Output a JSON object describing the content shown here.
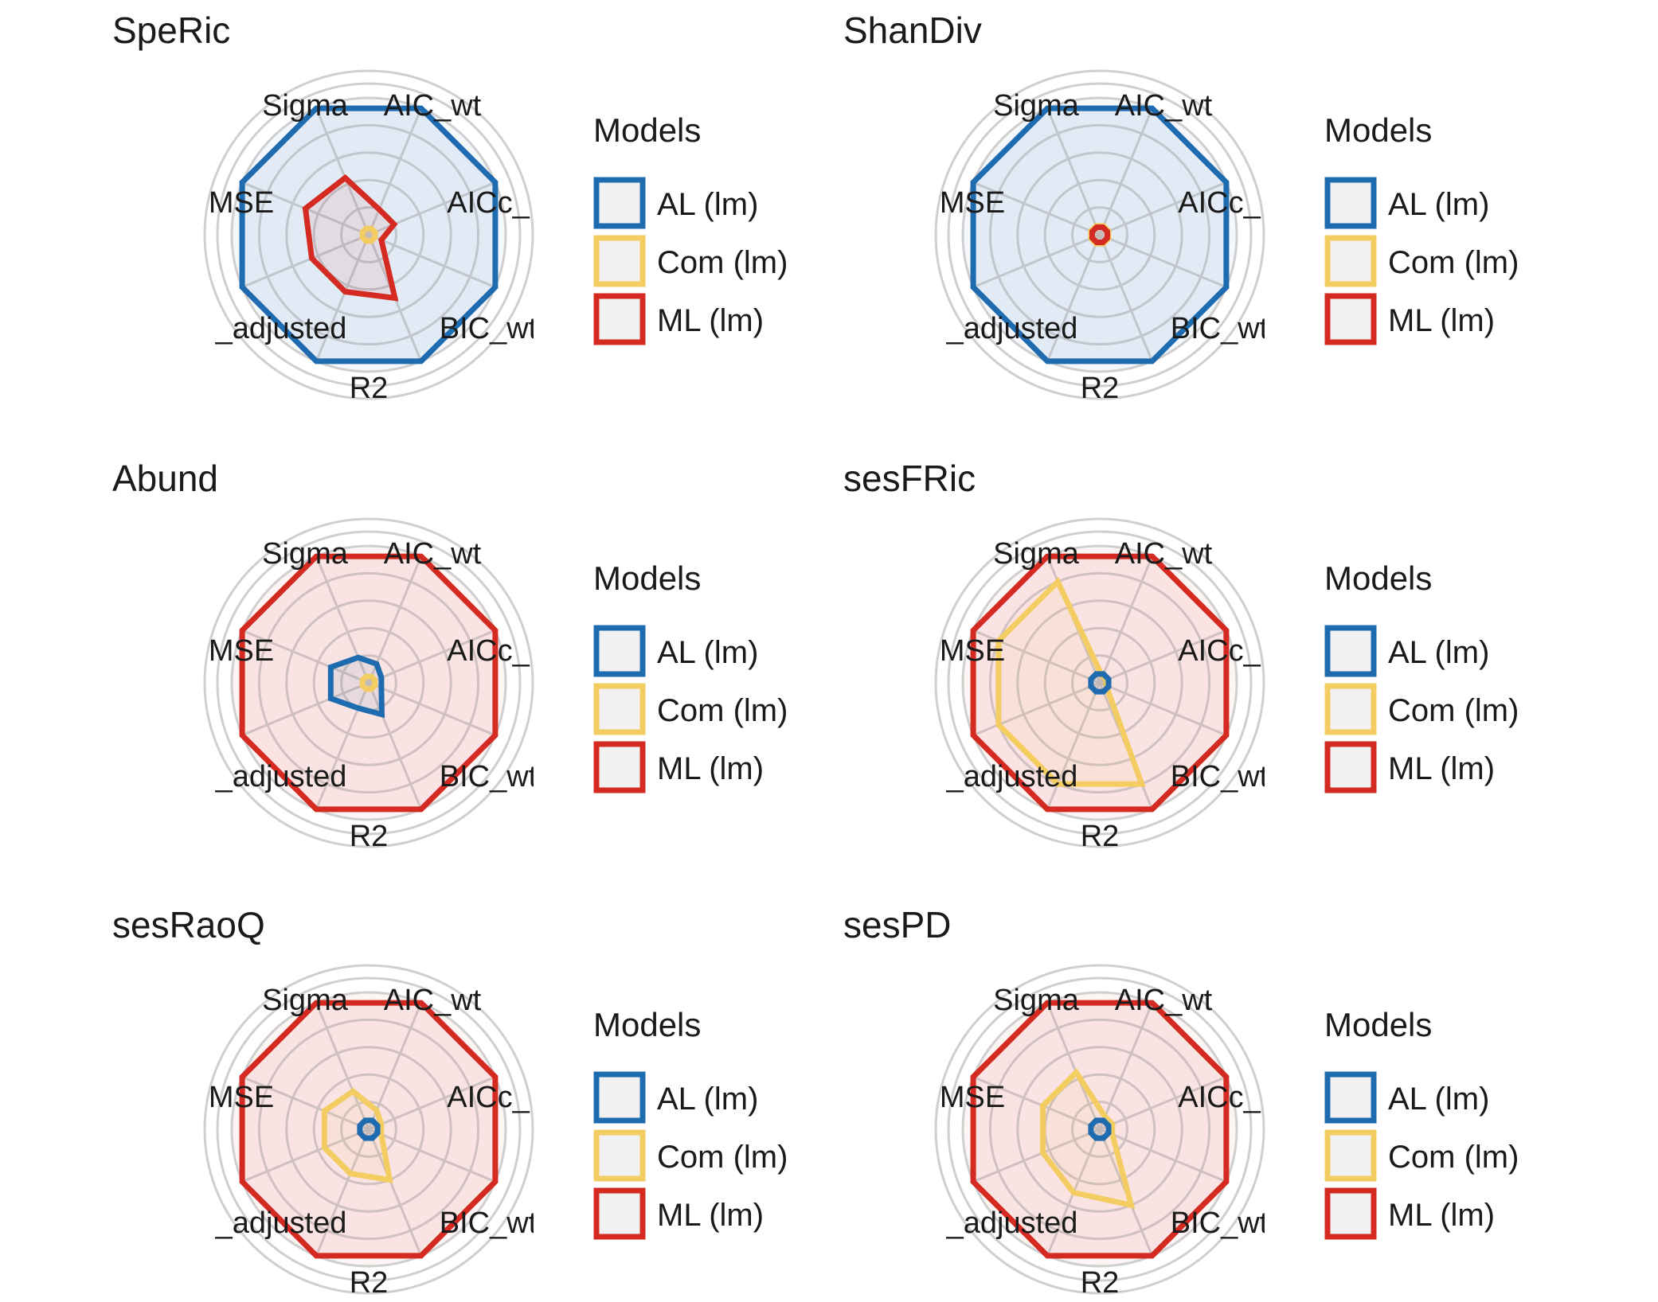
{
  "chart_data": [
    {
      "type": "radar",
      "title": "SpeRic",
      "axes": [
        "Sigma",
        "AIC_wt",
        "AICc_",
        "BIC_wt",
        "R2",
        "_adjusted",
        "MSE",
        ""
      ],
      "scale": [
        0,
        1
      ],
      "grid": true,
      "legend_title": "Models",
      "legend_position": "right",
      "series": [
        {
          "name": "AL (lm)",
          "color": "#1f6bb0",
          "values": [
            1,
            1,
            1,
            1,
            1,
            1,
            1,
            1
          ]
        },
        {
          "name": "Com (lm)",
          "color": "#f3cd62",
          "values": [
            0.05,
            0.05,
            0.05,
            0.05,
            0.05,
            0.05,
            0.05,
            0.05
          ]
        },
        {
          "name": "ML (lm)",
          "color": "#d42a21",
          "values": [
            0.45,
            0.2,
            0.2,
            0.1,
            0.5,
            0.45,
            0.45,
            0.5
          ]
        }
      ]
    },
    {
      "type": "radar",
      "title": "ShanDiv",
      "axes": [
        "Sigma",
        "AIC_wt",
        "AICc_",
        "BIC_wt",
        "R2",
        "_adjusted",
        "MSE",
        ""
      ],
      "scale": [
        0,
        1
      ],
      "grid": true,
      "legend_title": "Models",
      "legend_position": "right",
      "series": [
        {
          "name": "AL (lm)",
          "color": "#1f6bb0",
          "values": [
            1,
            1,
            1,
            1,
            1,
            1,
            1,
            1
          ]
        },
        {
          "name": "Com (lm)",
          "color": "#f3cd62",
          "values": [
            0.07,
            0.07,
            0.07,
            0.07,
            0.07,
            0.07,
            0.07,
            0.07
          ]
        },
        {
          "name": "ML (lm)",
          "color": "#d42a21",
          "values": [
            0.06,
            0.06,
            0.06,
            0.06,
            0.06,
            0.06,
            0.06,
            0.06
          ]
        }
      ]
    },
    {
      "type": "radar",
      "title": "Abund",
      "axes": [
        "Sigma",
        "AIC_wt",
        "AICc_",
        "BIC_wt",
        "R2",
        "_adjusted",
        "MSE",
        ""
      ],
      "scale": [
        0,
        1
      ],
      "grid": true,
      "legend_title": "Models",
      "legend_position": "right",
      "series": [
        {
          "name": "AL (lm)",
          "color": "#1f6bb0",
          "values": [
            0.2,
            0.15,
            0.1,
            0.1,
            0.25,
            0.2,
            0.3,
            0.3
          ]
        },
        {
          "name": "Com (lm)",
          "color": "#f3cd62",
          "values": [
            0.05,
            0.05,
            0.05,
            0.05,
            0.05,
            0.05,
            0.05,
            0.05
          ]
        },
        {
          "name": "ML (lm)",
          "color": "#d42a21",
          "values": [
            1,
            1,
            1,
            1,
            1,
            1,
            1,
            1
          ]
        }
      ]
    },
    {
      "type": "radar",
      "title": "sesFRic",
      "axes": [
        "Sigma",
        "AIC_wt",
        "AICc_",
        "BIC_wt",
        "R2",
        "_adjusted",
        "MSE",
        ""
      ],
      "scale": [
        0,
        1
      ],
      "grid": true,
      "legend_title": "Models",
      "legend_position": "right",
      "series": [
        {
          "name": "AL (lm)",
          "color": "#1f6bb0",
          "values": [
            0.07,
            0.07,
            0.07,
            0.07,
            0.07,
            0.07,
            0.07,
            0.07
          ]
        },
        {
          "name": "Com (lm)",
          "color": "#f3cd62",
          "values": [
            0.8,
            0.05,
            0.05,
            0.05,
            0.8,
            0.8,
            0.8,
            0.8
          ]
        },
        {
          "name": "ML (lm)",
          "color": "#d42a21",
          "values": [
            1,
            1,
            1,
            1,
            1,
            1,
            1,
            1
          ]
        }
      ]
    },
    {
      "type": "radar",
      "title": "sesRaoQ",
      "axes": [
        "Sigma",
        "AIC_wt",
        "AICc_",
        "BIC_wt",
        "R2",
        "_adjusted",
        "MSE",
        ""
      ],
      "scale": [
        0,
        1
      ],
      "grid": true,
      "legend_title": "Models",
      "legend_position": "right",
      "series": [
        {
          "name": "AL (lm)",
          "color": "#1f6bb0",
          "values": [
            0.07,
            0.07,
            0.07,
            0.07,
            0.07,
            0.07,
            0.07,
            0.07
          ]
        },
        {
          "name": "Com (lm)",
          "color": "#f3cd62",
          "values": [
            0.3,
            0.15,
            0.1,
            0.1,
            0.4,
            0.35,
            0.35,
            0.35
          ]
        },
        {
          "name": "ML (lm)",
          "color": "#d42a21",
          "values": [
            1,
            1,
            1,
            1,
            1,
            1,
            1,
            1
          ]
        }
      ]
    },
    {
      "type": "radar",
      "title": "sesPD",
      "axes": [
        "Sigma",
        "AIC_wt",
        "AICc_",
        "BIC_wt",
        "R2",
        "_adjusted",
        "MSE",
        ""
      ],
      "scale": [
        0,
        1
      ],
      "grid": true,
      "legend_title": "Models",
      "legend_position": "right",
      "series": [
        {
          "name": "AL (lm)",
          "color": "#1f6bb0",
          "values": [
            0.07,
            0.07,
            0.07,
            0.07,
            0.07,
            0.07,
            0.07,
            0.07
          ]
        },
        {
          "name": "Com (lm)",
          "color": "#f3cd62",
          "values": [
            0.45,
            0.1,
            0.1,
            0.1,
            0.6,
            0.5,
            0.45,
            0.45
          ]
        },
        {
          "name": "ML (lm)",
          "color": "#d42a21",
          "values": [
            1,
            1,
            1,
            1,
            1,
            1,
            1,
            1
          ]
        }
      ]
    }
  ]
}
